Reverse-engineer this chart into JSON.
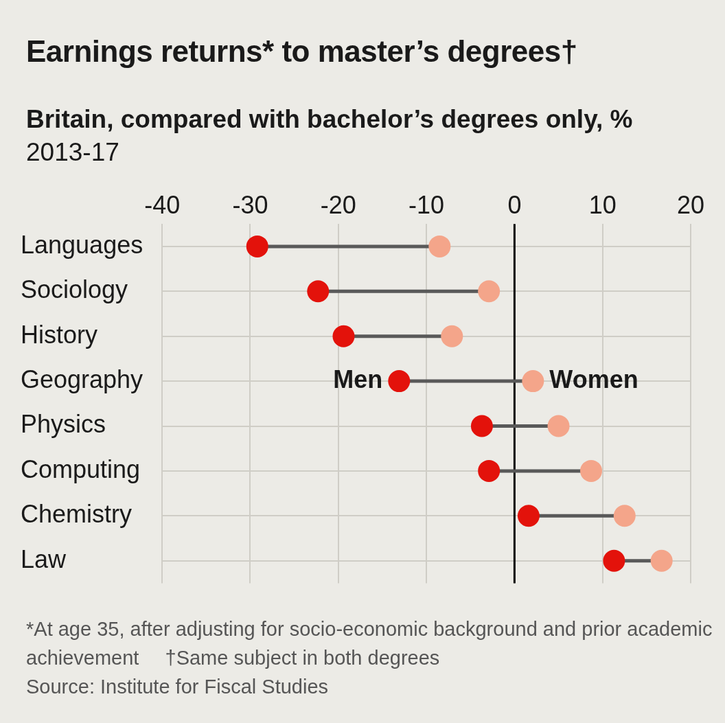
{
  "chart_data": {
    "type": "scatter",
    "orientation": "horizontal",
    "title": "Earnings returns* to master’s degrees†",
    "subtitle": "Britain, compared with bachelor’s degrees only, %\n2013-17",
    "categories": [
      "Languages",
      "Sociology",
      "History",
      "Geography",
      "Physics",
      "Computing",
      "Chemistry",
      "Law"
    ],
    "series": [
      {
        "name": "Men",
        "color": "#e3120b",
        "values": [
          -29.2,
          -22.3,
          -19.4,
          -13.1,
          -3.7,
          -2.9,
          1.6,
          11.3
        ]
      },
      {
        "name": "Women",
        "color": "#f4a58a",
        "values": [
          -8.5,
          -2.9,
          -7.1,
          2.1,
          5.0,
          8.7,
          12.5,
          16.7
        ]
      }
    ],
    "xlim": [
      -40,
      20
    ],
    "xticks": [
      -40,
      -30,
      -20,
      -10,
      0,
      10,
      20
    ],
    "grid": true,
    "legend": false,
    "marker": "circle",
    "ref_lines": [
      {
        "axis": "x",
        "value": 0,
        "color": "#000000"
      }
    ],
    "annotations": [
      "*At age 35, after adjusting for socio-economic background and prior academic achievement",
      "†Same subject in both degrees",
      "Source: Institute for Fiscal Studies"
    ]
  }
}
